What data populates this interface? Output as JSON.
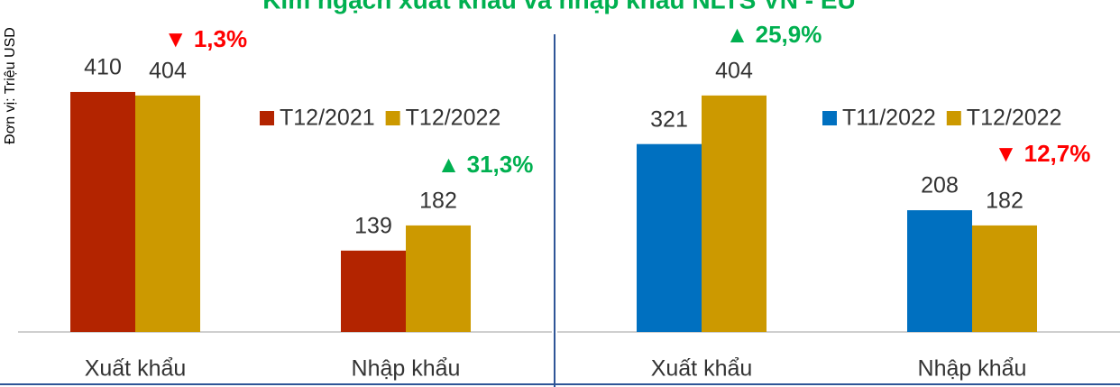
{
  "title": "Kim ngạch xuất khẩu và nhập khẩu NLTS VN - EU",
  "y_axis_label": "Đơn vị: Triệu USD",
  "chart_data": [
    {
      "type": "bar",
      "categories": [
        "Xuất khẩu",
        "Nhập khẩu"
      ],
      "series": [
        {
          "name": "T12/2021",
          "color": "#b32400",
          "values": [
            410,
            139
          ]
        },
        {
          "name": "T12/2022",
          "color": "#cc9900",
          "values": [
            404,
            182
          ]
        }
      ],
      "ylim": [
        0,
        450
      ],
      "annotations": [
        {
          "text": "▼ 1,3%",
          "color": "#ff0000"
        },
        {
          "text": "▲ 31,3%",
          "color": "#00b050"
        }
      ]
    },
    {
      "type": "bar",
      "categories": [
        "Xuất khẩu",
        "Nhập khẩu"
      ],
      "series": [
        {
          "name": "T11/2022",
          "color": "#0070c0",
          "values": [
            321,
            208
          ]
        },
        {
          "name": "T12/2022",
          "color": "#cc9900",
          "values": [
            404,
            182
          ]
        }
      ],
      "ylim": [
        0,
        450
      ],
      "annotations": [
        {
          "text": "▲ 25,9%",
          "color": "#00b050"
        },
        {
          "text": "▼ 12,7%",
          "color": "#ff0000"
        }
      ]
    }
  ]
}
